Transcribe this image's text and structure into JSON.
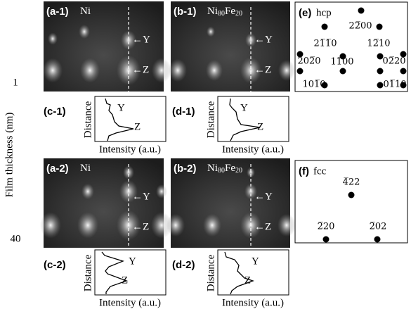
{
  "axis_label": "Film thickness (nm)",
  "thickness_labels": [
    "1",
    "40"
  ],
  "panels": [
    {
      "id": "(a-1)",
      "material": [
        {
          "text": "Ni"
        }
      ],
      "markers": [
        "←Y",
        "←Z"
      ]
    },
    {
      "id": "(b-1)",
      "material": [
        {
          "text": "Ni"
        },
        {
          "text": "80",
          "sub": true
        },
        {
          "text": "Fe"
        },
        {
          "text": "20",
          "sub": true
        }
      ],
      "markers": [
        "←Y",
        "←Z"
      ]
    },
    {
      "id": "(a-2)",
      "material": [
        {
          "text": "Ni"
        }
      ],
      "markers": [
        "←Y",
        "←Z"
      ]
    },
    {
      "id": "(b-2)",
      "material": [
        {
          "text": "Ni"
        },
        {
          "text": "80",
          "sub": true
        },
        {
          "text": "Fe"
        },
        {
          "text": "20",
          "sub": true
        }
      ],
      "markers": [
        "←Y",
        "←Z"
      ]
    }
  ],
  "profiles": [
    {
      "id": "(c-1)",
      "y_label": "Distance",
      "x_label": "Intensity (a.u.)",
      "peaks": [
        "Y",
        "Z"
      ]
    },
    {
      "id": "(d-1)",
      "y_label": "Distance",
      "x_label": "Intensity (a.u.)",
      "peaks": [
        "Y",
        "Z"
      ]
    },
    {
      "id": "(c-2)",
      "y_label": "Distance",
      "x_label": "Intensity (a.u.)",
      "peaks": [
        "Y",
        "Z"
      ]
    },
    {
      "id": "(d-2)",
      "y_label": "Distance",
      "x_label": "Intensity (a.u.)",
      "peaks": [
        "Y",
        "Z"
      ]
    }
  ],
  "patterns": [
    {
      "id": "(e)",
      "structure": "hcp",
      "spots": [
        "22̅00",
        "21̅1̅0",
        "12̅10",
        "202̅0",
        "11̅00",
        "02̅20",
        "101̅0",
        "01̅10"
      ]
    },
    {
      "id": "(f)",
      "structure": "fcc",
      "spots": [
        "4̅22",
        "2̅20",
        "2̅02"
      ]
    }
  ]
}
